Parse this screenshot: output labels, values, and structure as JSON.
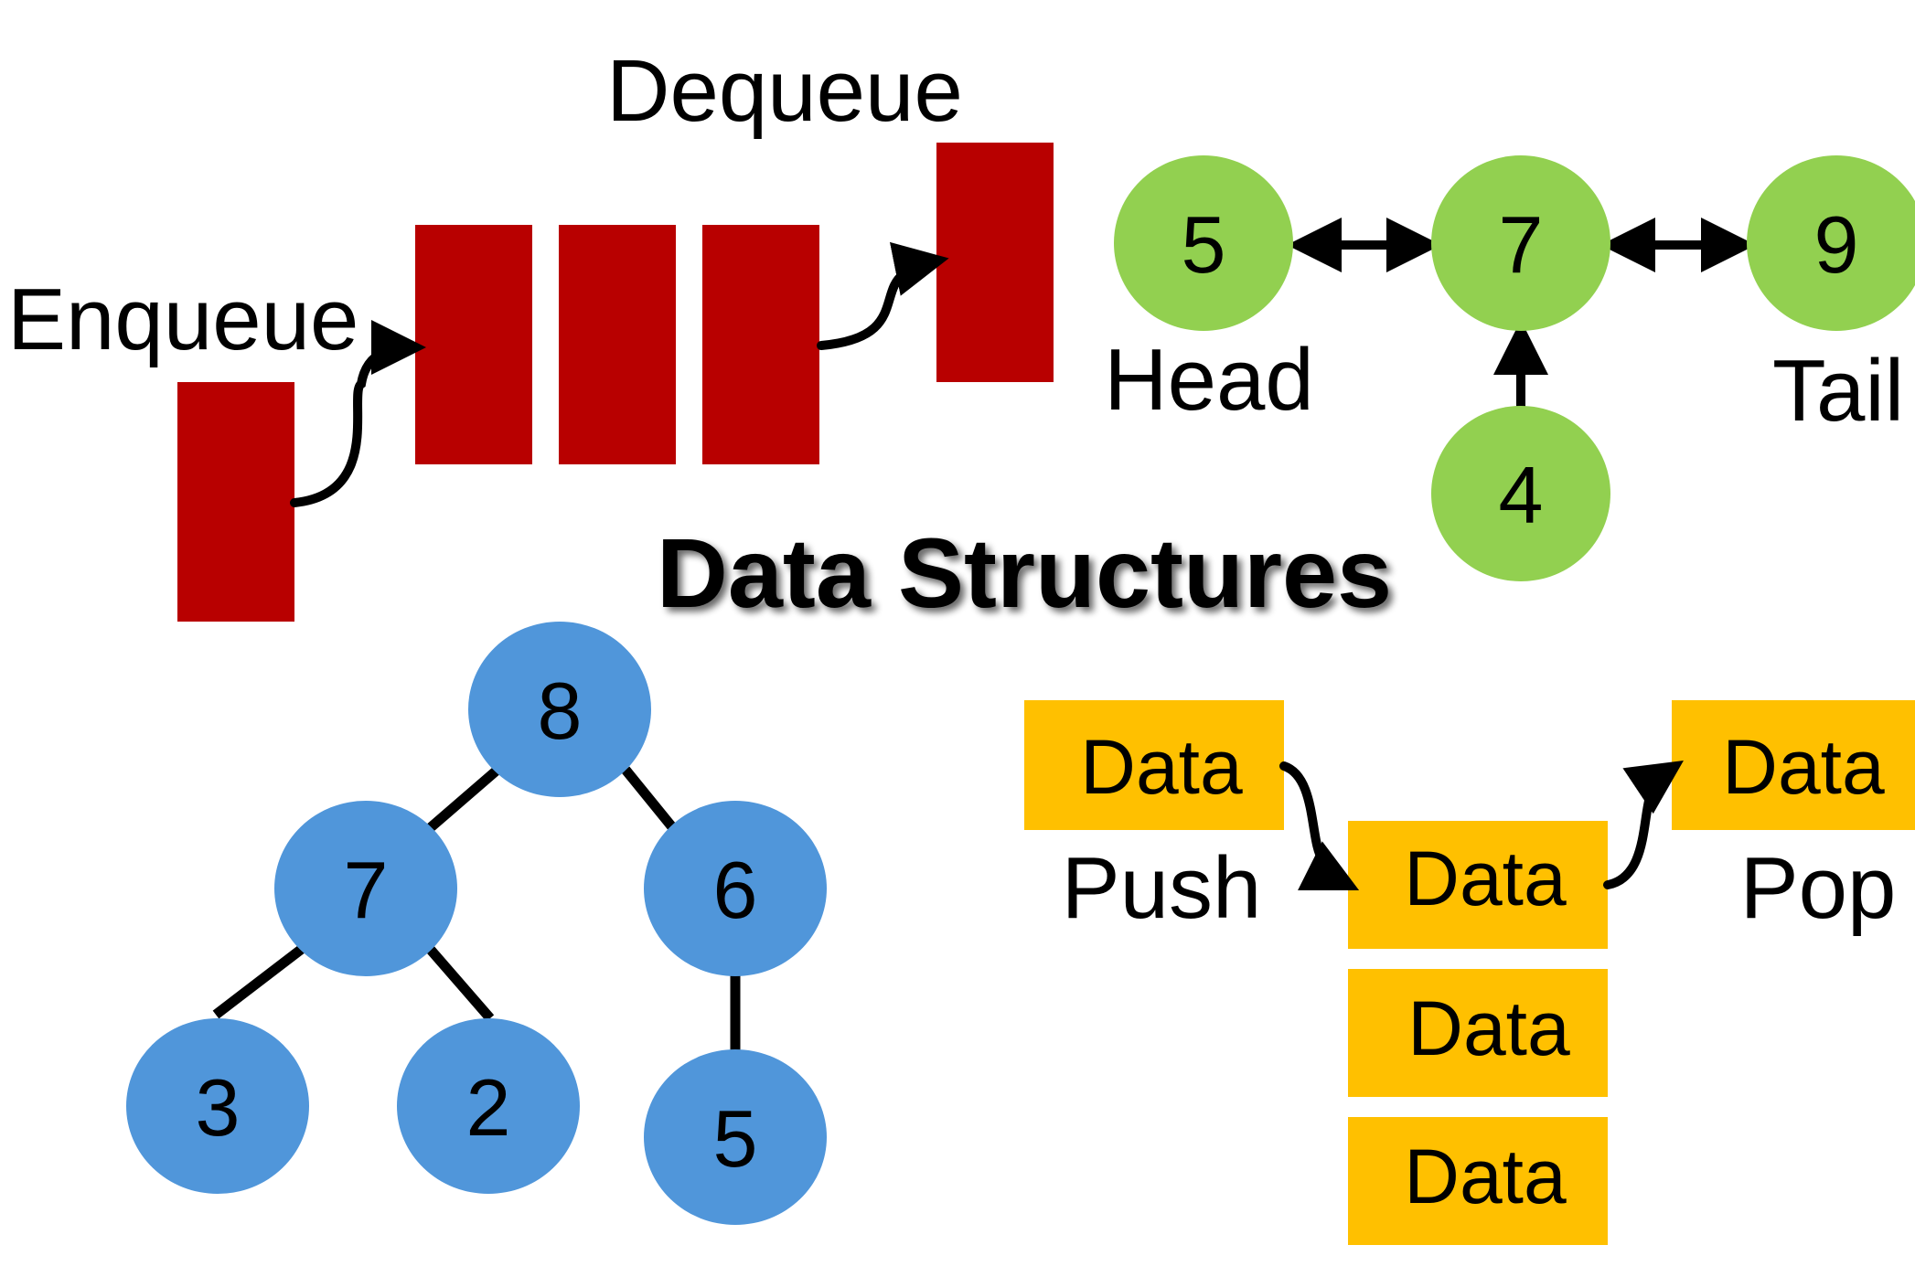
{
  "title": "Data Structures",
  "colors": {
    "queue": "#B80000",
    "linked_list": "#92D050",
    "tree": "#5096DA",
    "stack": "#FFC000",
    "line": "#000000"
  },
  "queue": {
    "enqueue_label": "Enqueue",
    "dequeue_label": "Dequeue"
  },
  "linked_list": {
    "nodes": [
      "5",
      "7",
      "9",
      "4"
    ],
    "head_label": "Head",
    "tail_label": "Tail"
  },
  "tree": {
    "nodes": [
      "8",
      "7",
      "6",
      "3",
      "2",
      "5"
    ]
  },
  "stack": {
    "push_label": "Push",
    "pop_label": "Pop",
    "push_item": "Data",
    "pop_item": "Data",
    "items": [
      "Data",
      "Data",
      "Data"
    ]
  }
}
